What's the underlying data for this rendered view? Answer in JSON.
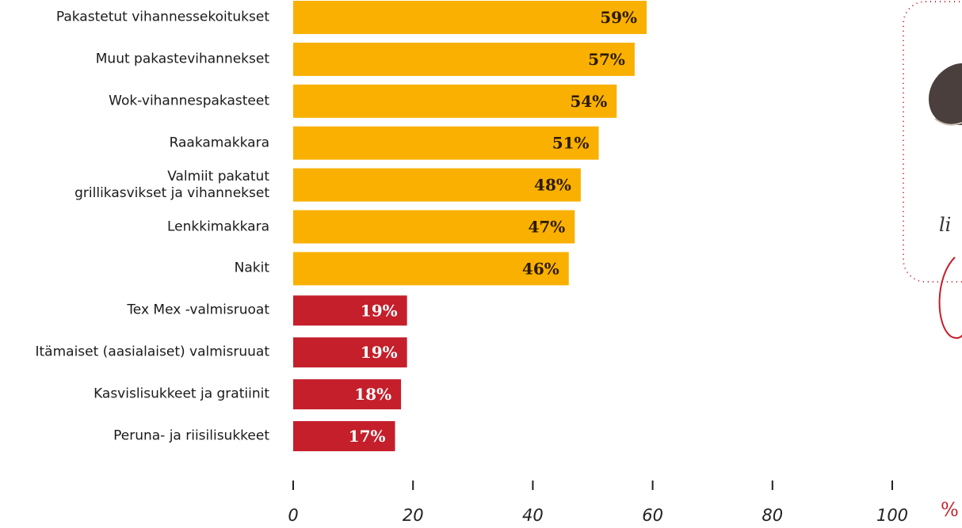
{
  "chart_data": {
    "type": "bar",
    "orientation": "horizontal",
    "categories": [
      "Pakastetut vihannessekoitukset",
      "Muut pakastevihannekset",
      "Wok-vihannespakasteet",
      "Raakamakkara",
      "Valmiit pakatut\ngrillikasvikset ja vihannekset",
      "Lenkkimakkara",
      "Nakit",
      "Tex Mex -valmisruoat",
      "Itämaiset (aasialaiset) valmisruuat",
      "Kasvislisukkeet ja gratiinit",
      "Peruna- ja riisilisukkeet"
    ],
    "values": [
      59,
      57,
      54,
      51,
      48,
      47,
      46,
      19,
      19,
      18,
      17
    ],
    "value_labels": [
      "59%",
      "57%",
      "54%",
      "51%",
      "48%",
      "47%",
      "46%",
      "19%",
      "19%",
      "18%",
      "17%"
    ],
    "colors": [
      "#f9b000",
      "#f9b000",
      "#f9b000",
      "#f9b000",
      "#f9b000",
      "#f9b000",
      "#f9b000",
      "#c41f2b",
      "#c41f2b",
      "#c41f2b",
      "#c41f2b"
    ],
    "xlim": [
      0,
      100
    ],
    "xticks": [
      0,
      20,
      40,
      60,
      80,
      100
    ],
    "x_unit": "%",
    "annotation": "li"
  }
}
